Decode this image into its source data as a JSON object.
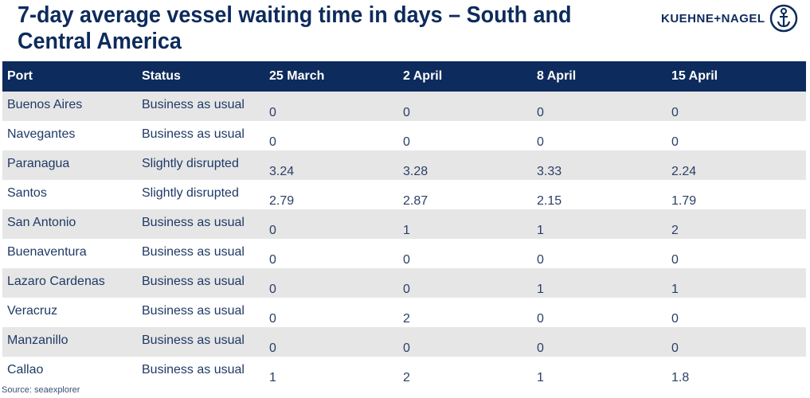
{
  "title": "7-day average vessel waiting time in days – South and Central America",
  "logo": {
    "text": "KUEHNE+NAGEL",
    "icon": "anchor-icon"
  },
  "headers": [
    "Port",
    "Status",
    "25 March",
    "2 April",
    "8 April",
    "15 April"
  ],
  "rows": [
    {
      "port": "Buenos Aires",
      "status": "Business as usual",
      "v1": "0",
      "v2": "0",
      "v3": "0",
      "v4": "0"
    },
    {
      "port": "Navegantes",
      "status": "Business as usual",
      "v1": "0",
      "v2": "0",
      "v3": "0",
      "v4": "0"
    },
    {
      "port": "Paranagua",
      "status": "Slightly disrupted",
      "v1": "3.24",
      "v2": "3.28",
      "v3": "3.33",
      "v4": "2.24"
    },
    {
      "port": "Santos",
      "status": "Slightly disrupted",
      "v1": "2.79",
      "v2": "2.87",
      "v3": "2.15",
      "v4": "1.79"
    },
    {
      "port": "San Antonio",
      "status": "Business as usual",
      "v1": "0",
      "v2": "1",
      "v3": "1",
      "v4": "2"
    },
    {
      "port": "Buenaventura",
      "status": "Business as usual",
      "v1": "0",
      "v2": "0",
      "v3": "0",
      "v4": "0"
    },
    {
      "port": "Lazaro Cardenas",
      "status": "Business as usual",
      "v1": "0",
      "v2": "0",
      "v3": "1",
      "v4": "1"
    },
    {
      "port": "Veracruz",
      "status": "Business as usual",
      "v1": "0",
      "v2": "2",
      "v3": "0",
      "v4": "0"
    },
    {
      "port": "Manzanillo",
      "status": "Business as usual",
      "v1": "0",
      "v2": "0",
      "v3": "0",
      "v4": "0"
    },
    {
      "port": "Callao",
      "status": "Business as usual",
      "v1": "1",
      "v2": "2",
      "v3": "1",
      "v4": "1.8"
    }
  ],
  "source": "Source: seaexplorer",
  "colors": {
    "header_bg": "#0d2b5c",
    "band": "#e6e6e6",
    "title": "#0d2b5c"
  }
}
